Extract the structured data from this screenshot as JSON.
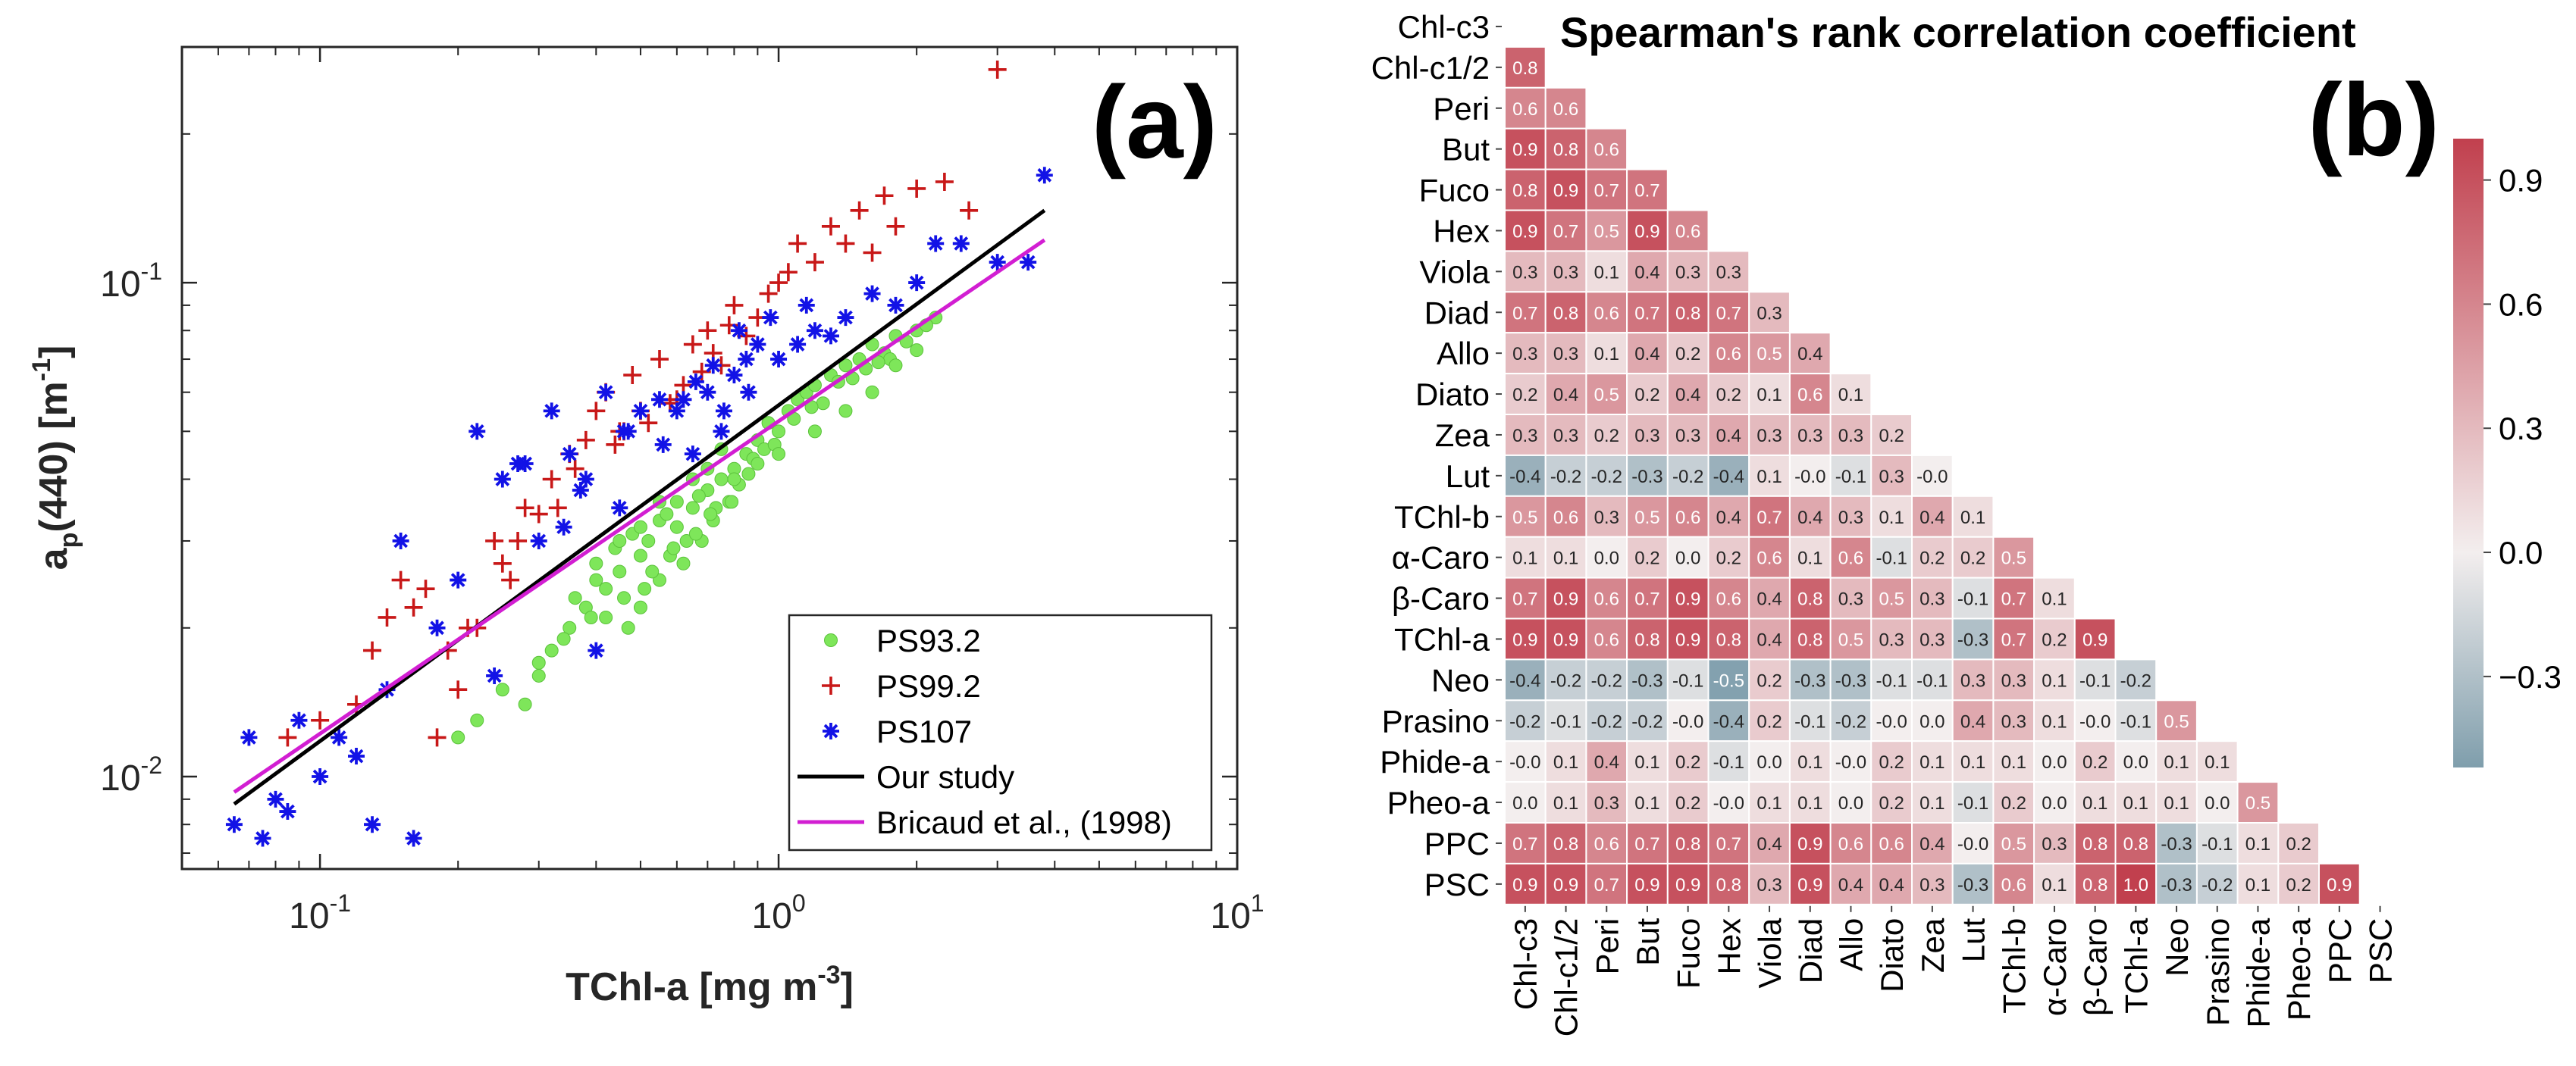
{
  "figure": {
    "panel_a_label": "(a)",
    "panel_b_label": "(b)"
  },
  "colors": {
    "ps93": "#7ee65a",
    "ps99": "#c81818",
    "ps107": "#1212e6",
    "our_study": "#000000",
    "bricaud": "#d21ed2",
    "heat_pos": "#c1404e",
    "heat_neg": "#7f9eac",
    "heat_mid": "#f3eeee"
  },
  "chart_data": [
    {
      "type": "scatter",
      "panel": "(a)",
      "xscale": "log",
      "yscale": "log",
      "xlabel": "TChl-a [mg m",
      "xlabel_sup": "-3",
      "xlabel_end": "]",
      "ylabel_main": "a",
      "ylabel_sub": "p",
      "ylabel_mid": "(440) [m",
      "ylabel_sup": "-1",
      "ylabel_end": "]",
      "xlim": [
        0.05,
        10
      ],
      "ylim": [
        0.0065,
        0.3
      ],
      "xticks": [
        {
          "value": 0.1,
          "base": "10",
          "exp": "-1"
        },
        {
          "value": 1,
          "base": "10",
          "exp": "0"
        },
        {
          "value": 10,
          "base": "10",
          "exp": "1"
        }
      ],
      "yticks": [
        {
          "value": 0.01,
          "base": "10",
          "exp": "-2"
        },
        {
          "value": 0.1,
          "base": "10",
          "exp": "-1"
        }
      ],
      "legend_position": "bottom-right",
      "series": [
        {
          "name": "PS93.2",
          "marker": "circle",
          "color": "#7ee65a",
          "x": [
            0.2,
            0.22,
            0.25,
            0.28,
            0.3,
            0.32,
            0.35,
            0.38,
            0.4,
            0.42,
            0.45,
            0.47,
            0.5,
            0.5,
            0.52,
            0.55,
            0.55,
            0.58,
            0.6,
            0.62,
            0.65,
            0.68,
            0.7,
            0.72,
            0.75,
            0.78,
            0.8,
            0.85,
            0.9,
            0.95,
            1.0,
            1.05,
            1.1,
            1.15,
            1.2,
            1.3,
            1.4,
            1.5,
            1.6,
            1.7,
            1.8,
            2.0,
            2.2,
            0.36,
            0.4,
            0.44,
            0.48,
            0.53,
            0.57,
            0.63,
            0.67,
            0.73,
            0.82,
            0.88,
            0.93,
            1.25,
            1.35,
            1.55,
            1.75,
            1.9,
            0.34,
            0.39,
            0.46,
            0.51,
            0.59,
            0.66,
            0.71,
            0.79,
            0.86,
            0.98,
            1.08,
            1.18,
            1.45,
            1.65,
            2.1,
            0.3,
            0.42,
            0.5,
            0.6,
            0.7,
            0.8,
            0.9,
            1.0,
            1.2,
            1.4,
            1.6,
            1.8,
            2.0,
            0.45,
            0.55,
            0.65,
            0.75
          ],
          "y": [
            0.012,
            0.013,
            0.015,
            0.014,
            0.016,
            0.018,
            0.02,
            0.022,
            0.025,
            0.024,
            0.026,
            0.02,
            0.028,
            0.022,
            0.03,
            0.025,
            0.033,
            0.028,
            0.032,
            0.027,
            0.035,
            0.03,
            0.038,
            0.033,
            0.04,
            0.036,
            0.042,
            0.045,
            0.048,
            0.052,
            0.05,
            0.055,
            0.058,
            0.06,
            0.062,
            0.065,
            0.068,
            0.07,
            0.075,
            0.072,
            0.078,
            0.08,
            0.085,
            0.023,
            0.027,
            0.029,
            0.031,
            0.026,
            0.034,
            0.03,
            0.037,
            0.035,
            0.039,
            0.044,
            0.046,
            0.057,
            0.063,
            0.067,
            0.07,
            0.076,
            0.019,
            0.021,
            0.023,
            0.024,
            0.029,
            0.031,
            0.034,
            0.036,
            0.041,
            0.047,
            0.053,
            0.056,
            0.064,
            0.069,
            0.082,
            0.017,
            0.021,
            0.032,
            0.036,
            0.042,
            0.04,
            0.043,
            0.045,
            0.05,
            0.055,
            0.06,
            0.068,
            0.073,
            0.03,
            0.036,
            0.04,
            0.046
          ]
        },
        {
          "name": "PS99.2",
          "marker": "plus",
          "color": "#c81818",
          "x": [
            0.085,
            0.1,
            0.12,
            0.13,
            0.15,
            0.17,
            0.18,
            0.2,
            0.22,
            0.24,
            0.25,
            0.28,
            0.3,
            0.33,
            0.35,
            0.38,
            0.4,
            0.42,
            0.45,
            0.48,
            0.5,
            0.55,
            0.6,
            0.65,
            0.7,
            0.75,
            0.8,
            0.9,
            1.0,
            1.1,
            1.2,
            1.3,
            1.4,
            1.5,
            1.7,
            1.8,
            2.0,
            2.3,
            2.6,
            3.0,
            0.14,
            0.19,
            0.26,
            0.36,
            0.44,
            0.52,
            0.62,
            0.72,
            0.85,
            0.95,
            1.05,
            1.6,
            0.16,
            0.21,
            0.27,
            0.32,
            0.46,
            0.58,
            0.68,
            0.78
          ],
          "y": [
            0.012,
            0.013,
            0.014,
            0.018,
            0.025,
            0.024,
            0.012,
            0.015,
            0.02,
            0.03,
            0.027,
            0.035,
            0.034,
            0.035,
            0.045,
            0.048,
            0.055,
            0.06,
            0.05,
            0.065,
            0.055,
            0.07,
            0.058,
            0.075,
            0.08,
            0.068,
            0.09,
            0.085,
            0.1,
            0.12,
            0.11,
            0.13,
            0.12,
            0.14,
            0.15,
            0.13,
            0.155,
            0.16,
            0.14,
            0.27,
            0.021,
            0.018,
            0.025,
            0.042,
            0.047,
            0.052,
            0.062,
            0.072,
            0.078,
            0.095,
            0.105,
            0.115,
            0.022,
            0.02,
            0.03,
            0.04,
            0.05,
            0.057,
            0.066,
            0.082
          ]
        },
        {
          "name": "PS107",
          "marker": "asterisk",
          "color": "#1212e6",
          "x": [
            0.065,
            0.07,
            0.075,
            0.08,
            0.085,
            0.09,
            0.1,
            0.11,
            0.12,
            0.13,
            0.15,
            0.16,
            0.18,
            0.2,
            0.22,
            0.25,
            0.28,
            0.3,
            0.32,
            0.35,
            0.38,
            0.4,
            0.42,
            0.45,
            0.5,
            0.55,
            0.6,
            0.65,
            0.7,
            0.75,
            0.8,
            0.85,
            0.9,
            1.0,
            1.1,
            1.2,
            1.4,
            1.6,
            1.8,
            2.0,
            2.5,
            3.0,
            3.5,
            3.8,
            0.14,
            0.24,
            0.34,
            0.46,
            0.56,
            0.66,
            0.76,
            0.86,
            0.96,
            1.3,
            0.27,
            0.37,
            0.47,
            0.62,
            0.72,
            0.82,
            1.15,
            2.2
          ],
          "y": [
            0.008,
            0.012,
            0.0075,
            0.009,
            0.0085,
            0.013,
            0.01,
            0.012,
            0.011,
            0.008,
            0.03,
            0.0075,
            0.02,
            0.025,
            0.05,
            0.04,
            0.043,
            0.03,
            0.055,
            0.045,
            0.04,
            0.018,
            0.06,
            0.035,
            0.055,
            0.058,
            0.055,
            0.045,
            0.06,
            0.05,
            0.065,
            0.07,
            0.075,
            0.07,
            0.075,
            0.08,
            0.085,
            0.095,
            0.09,
            0.1,
            0.12,
            0.11,
            0.11,
            0.165,
            0.015,
            0.016,
            0.032,
            0.05,
            0.047,
            0.063,
            0.055,
            0.06,
            0.085,
            0.078,
            0.043,
            0.038,
            0.05,
            0.058,
            0.068,
            0.08,
            0.09,
            0.12
          ]
        }
      ],
      "lines": [
        {
          "name": "Our study",
          "color": "#000000",
          "x": [
            0.065,
            3.8
          ],
          "y": [
            0.0088,
            0.14
          ]
        },
        {
          "name": "Bricaud et al., (1998)",
          "color": "#d21ed2",
          "x": [
            0.065,
            3.8
          ],
          "y": [
            0.0093,
            0.122
          ]
        }
      ]
    },
    {
      "type": "heatmap",
      "panel": "(b)",
      "title": "Spearman's rank correlation coefficient",
      "labels": [
        "Chl-c3",
        "Chl-c1/2",
        "Peri",
        "But",
        "Fuco",
        "Hex",
        "Viola",
        "Diad",
        "Allo",
        "Diato",
        "Zea",
        "Lut",
        "TChl-b",
        "α-Caro",
        "β-Caro",
        "TChl-a",
        "Neo",
        "Prasino",
        "Phide-a",
        "Pheo-a",
        "PPC",
        "PSC"
      ],
      "rows": [
        [],
        [
          "0.8"
        ],
        [
          "0.6",
          "0.6"
        ],
        [
          "0.9",
          "0.8",
          "0.6"
        ],
        [
          "0.8",
          "0.9",
          "0.7",
          "0.7"
        ],
        [
          "0.9",
          "0.7",
          "0.5",
          "0.9",
          "0.6"
        ],
        [
          "0.3",
          "0.3",
          "0.1",
          "0.4",
          "0.3",
          "0.3"
        ],
        [
          "0.7",
          "0.8",
          "0.6",
          "0.7",
          "0.8",
          "0.7",
          "0.3"
        ],
        [
          "0.3",
          "0.3",
          "0.1",
          "0.4",
          "0.2",
          "0.6",
          "0.5",
          "0.4"
        ],
        [
          "0.2",
          "0.4",
          "0.5",
          "0.2",
          "0.4",
          "0.2",
          "0.1",
          "0.6",
          "0.1"
        ],
        [
          "0.3",
          "0.3",
          "0.2",
          "0.3",
          "0.3",
          "0.4",
          "0.3",
          "0.3",
          "0.3",
          "0.2"
        ],
        [
          "-0.4",
          "-0.2",
          "-0.2",
          "-0.3",
          "-0.2",
          "-0.4",
          "0.1",
          "-0.0",
          "-0.1",
          "0.3",
          "-0.0"
        ],
        [
          "0.5",
          "0.6",
          "0.3",
          "0.5",
          "0.6",
          "0.4",
          "0.7",
          "0.4",
          "0.3",
          "0.1",
          "0.4",
          "0.1"
        ],
        [
          "0.1",
          "0.1",
          "0.0",
          "0.2",
          "0.0",
          "0.2",
          "0.6",
          "0.1",
          "0.6",
          "-0.1",
          "0.2",
          "0.2",
          "0.5"
        ],
        [
          "0.7",
          "0.9",
          "0.6",
          "0.7",
          "0.9",
          "0.6",
          "0.4",
          "0.8",
          "0.3",
          "0.5",
          "0.3",
          "-0.1",
          "0.7",
          "0.1"
        ],
        [
          "0.9",
          "0.9",
          "0.6",
          "0.8",
          "0.9",
          "0.8",
          "0.4",
          "0.8",
          "0.5",
          "0.3",
          "0.3",
          "-0.3",
          "0.7",
          "0.2",
          "0.9"
        ],
        [
          "-0.4",
          "-0.2",
          "-0.2",
          "-0.3",
          "-0.1",
          "-0.5",
          "0.2",
          "-0.3",
          "-0.3",
          "-0.1",
          "-0.1",
          "0.3",
          "0.3",
          "0.1",
          "-0.1",
          "-0.2"
        ],
        [
          "-0.2",
          "-0.1",
          "-0.2",
          "-0.2",
          "-0.0",
          "-0.4",
          "0.2",
          "-0.1",
          "-0.2",
          "-0.0",
          "0.0",
          "0.4",
          "0.3",
          "0.1",
          "-0.0",
          "-0.1",
          "0.5"
        ],
        [
          "-0.0",
          "0.1",
          "0.4",
          "0.1",
          "0.2",
          "-0.1",
          "0.0",
          "0.1",
          "-0.0",
          "0.2",
          "0.1",
          "0.1",
          "0.1",
          "0.0",
          "0.2",
          "0.0",
          "0.1",
          "0.1"
        ],
        [
          "0.0",
          "0.1",
          "0.3",
          "0.1",
          "0.2",
          "-0.0",
          "0.1",
          "0.1",
          "0.0",
          "0.2",
          "0.1",
          "-0.1",
          "0.2",
          "0.0",
          "0.1",
          "0.1",
          "0.1",
          "0.0",
          "0.5"
        ],
        [
          "0.7",
          "0.8",
          "0.6",
          "0.7",
          "0.8",
          "0.7",
          "0.4",
          "0.9",
          "0.6",
          "0.6",
          "0.4",
          "-0.0",
          "0.5",
          "0.3",
          "0.8",
          "0.8",
          "-0.3",
          "-0.1",
          "0.1",
          "0.2"
        ],
        [
          "0.9",
          "0.9",
          "0.7",
          "0.9",
          "0.9",
          "0.8",
          "0.3",
          "0.9",
          "0.4",
          "0.4",
          "0.3",
          "-0.3",
          "0.6",
          "0.1",
          "0.8",
          "1.0",
          "-0.3",
          "-0.2",
          "0.1",
          "0.2",
          "0.9"
        ]
      ],
      "vmin": -0.52,
      "vmax": 1.0,
      "colorbar_ticks": [
        "0.9",
        "0.6",
        "0.3",
        "0.0",
        "−0.3"
      ],
      "colorbar_values": [
        0.9,
        0.6,
        0.3,
        0.0,
        -0.3
      ]
    }
  ]
}
